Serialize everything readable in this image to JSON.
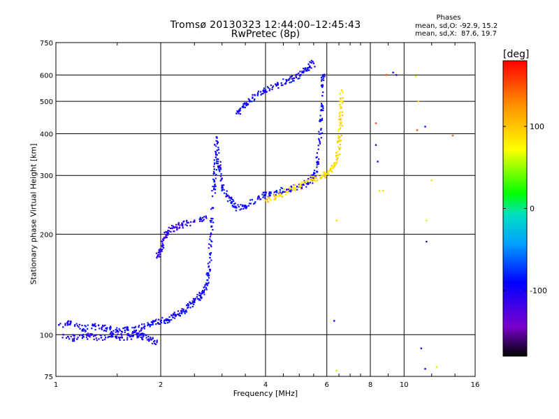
{
  "header": {
    "title": "Tromsø 20130323 12:44:00–12:45:43",
    "subtitle": "RwPretec (8p)",
    "phase_title": "Phases",
    "stat_o": "mean, sd,O: -92.9, 15.2",
    "stat_x": "mean, sd,X:  87.6, 19.7"
  },
  "colorbar": {
    "label": "[deg]",
    "range": [
      -180,
      180
    ],
    "ticks": [
      100,
      0,
      -100
    ],
    "tick_labels": [
      "100",
      "0",
      "-100"
    ]
  },
  "chart_data": {
    "type": "scatter",
    "xlabel": "Frequency [MHz]",
    "ylabel": "Stationary phase Virtual Height [km]",
    "xscale": "log",
    "yscale": "log",
    "xlim": [
      1,
      16
    ],
    "ylim": [
      75,
      750
    ],
    "xticks": [
      1,
      2,
      4,
      6,
      8,
      10,
      16
    ],
    "xtick_labels": [
      "1",
      "2",
      "4",
      "6",
      "8",
      "10",
      "16"
    ],
    "yticks": [
      75,
      100,
      200,
      300,
      400,
      500,
      600,
      750
    ],
    "ytick_labels": [
      "75",
      "100",
      "200",
      "300",
      "400",
      "500",
      "600",
      "750"
    ],
    "grid": true,
    "series": [
      {
        "comment": "ordinary-mode echoes, phase approx -95 deg",
        "points": [
          [
            1.02,
            107
          ],
          [
            1.1,
            108
          ],
          [
            1.2,
            104
          ],
          [
            1.3,
            106
          ],
          [
            1.4,
            104
          ],
          [
            1.5,
            103
          ],
          [
            1.6,
            104
          ],
          [
            1.7,
            103
          ],
          [
            1.8,
            106
          ],
          [
            1.9,
            109
          ],
          [
            2.0,
            110
          ],
          [
            2.1,
            111
          ],
          [
            2.2,
            114
          ],
          [
            2.3,
            117
          ],
          [
            2.4,
            121
          ],
          [
            2.5,
            125
          ],
          [
            2.6,
            131
          ],
          [
            2.7,
            138
          ],
          [
            2.74,
            150
          ],
          [
            2.77,
            170
          ],
          [
            2.79,
            200
          ],
          [
            2.82,
            240
          ],
          [
            2.85,
            290
          ],
          [
            2.88,
            340
          ],
          [
            2.9,
            390
          ],
          [
            2.95,
            320
          ],
          [
            3.0,
            280
          ],
          [
            3.1,
            260
          ],
          [
            3.2,
            250
          ],
          [
            3.3,
            240
          ],
          [
            3.5,
            243
          ],
          [
            3.8,
            255
          ],
          [
            4.0,
            262
          ],
          [
            4.3,
            268
          ],
          [
            4.6,
            272
          ],
          [
            5.0,
            277
          ],
          [
            5.3,
            285
          ],
          [
            5.5,
            295
          ],
          [
            5.65,
            330
          ],
          [
            5.75,
            400
          ],
          [
            5.8,
            470
          ],
          [
            5.83,
            560
          ],
          [
            5.85,
            600
          ]
        ],
        "phase": -95
      },
      {
        "comment": "extraordinary-mode echoes, phase approx 90 deg",
        "points": [
          [
            4.0,
            252
          ],
          [
            4.3,
            260
          ],
          [
            4.6,
            268
          ],
          [
            5.0,
            278
          ],
          [
            5.3,
            288
          ],
          [
            5.6,
            295
          ],
          [
            5.9,
            302
          ],
          [
            6.1,
            310
          ],
          [
            6.3,
            320
          ],
          [
            6.45,
            345
          ],
          [
            6.52,
            380
          ],
          [
            6.57,
            430
          ],
          [
            6.6,
            480
          ],
          [
            6.62,
            540
          ]
        ],
        "phase": 90
      },
      {
        "comment": "sporadic low echoes near 100 km, phase approx -100 deg",
        "points": [
          [
            1.05,
            100
          ],
          [
            1.15,
            97
          ],
          [
            1.25,
            99
          ],
          [
            1.35,
            98
          ],
          [
            1.45,
            100
          ],
          [
            1.55,
            98
          ],
          [
            1.65,
            99
          ],
          [
            1.75,
            100
          ],
          [
            1.85,
            97
          ],
          [
            1.95,
            95
          ]
        ],
        "phase": -100
      },
      {
        "comment": "upper trace near 2 MHz, phase approx -110 deg",
        "points": [
          [
            1.95,
            170
          ],
          [
            2.0,
            180
          ],
          [
            2.05,
            195
          ],
          [
            2.1,
            205
          ],
          [
            2.2,
            210
          ],
          [
            2.3,
            213
          ],
          [
            2.5,
            218
          ],
          [
            2.7,
            225
          ]
        ],
        "phase": -110
      },
      {
        "comment": "multi-hop trace, phase approx -95 deg",
        "points": [
          [
            3.3,
            460
          ],
          [
            3.45,
            480
          ],
          [
            3.6,
            500
          ],
          [
            3.8,
            525
          ],
          [
            4.0,
            540
          ],
          [
            4.3,
            560
          ],
          [
            4.6,
            575
          ],
          [
            4.9,
            590
          ],
          [
            5.1,
            610
          ],
          [
            5.3,
            630
          ],
          [
            5.5,
            650
          ]
        ],
        "phase": -95
      },
      {
        "comment": "scattered outliers, mixed phase",
        "points": [
          [
            6.3,
            110
          ],
          [
            6.4,
            78
          ],
          [
            6.4,
            220
          ],
          [
            8.3,
            430
          ],
          [
            8.3,
            370
          ],
          [
            8.4,
            330
          ],
          [
            8.5,
            270
          ],
          [
            8.7,
            270
          ],
          [
            8.9,
            600
          ],
          [
            9.3,
            610
          ],
          [
            9.5,
            600
          ],
          [
            10.8,
            595
          ],
          [
            11.0,
            500
          ],
          [
            10.9,
            410
          ],
          [
            11.5,
            420
          ],
          [
            11.6,
            190
          ],
          [
            11.6,
            220
          ],
          [
            12.0,
            290
          ],
          [
            13.8,
            395
          ],
          [
            11.2,
            91
          ],
          [
            11.5,
            79
          ],
          [
            12.4,
            80
          ]
        ],
        "phase": 60
      }
    ]
  }
}
